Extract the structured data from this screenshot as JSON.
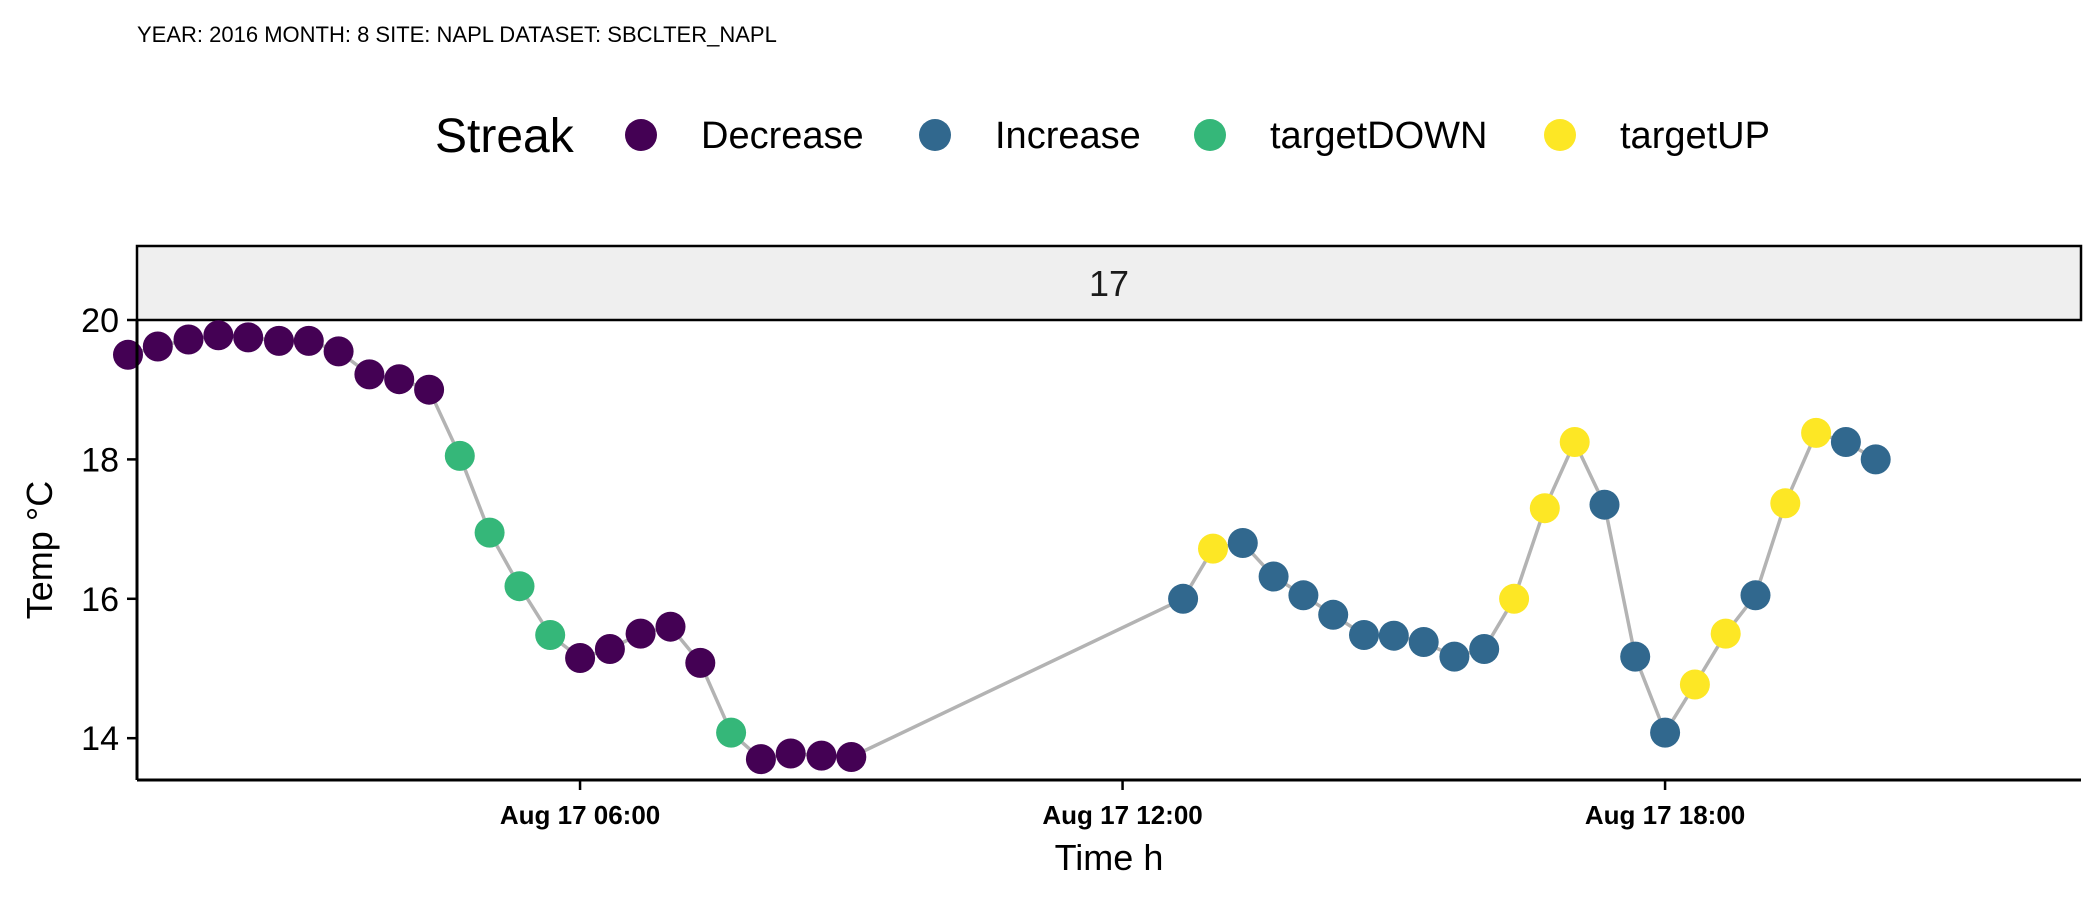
{
  "caption": "YEAR: 2016 MONTH: 8 SITE:  NAPL DATASET:  SBCLTER_NAPL",
  "chart_data": {
    "type": "scatter",
    "facet_label": "17",
    "xlabel": "Time h",
    "ylabel": "Temp °C",
    "ylim": [
      13.4,
      20.0
    ],
    "yticks": [
      14,
      16,
      18,
      20
    ],
    "xlim": [
      1.1,
      22.6
    ],
    "xticks": [
      {
        "value": 6,
        "label": "Aug 17 06:00"
      },
      {
        "value": 12,
        "label": "Aug 17 12:00"
      },
      {
        "value": 18,
        "label": "Aug 17 18:00"
      }
    ],
    "line_color": "#b3b3b3",
    "legend": {
      "title": "Streak",
      "position": "top",
      "entries": [
        {
          "name": "Decrease",
          "color": "#440154"
        },
        {
          "name": "Increase",
          "color": "#31688e"
        },
        {
          "name": "targetDOWN",
          "color": "#35b779"
        },
        {
          "name": "targetUP",
          "color": "#fde725"
        }
      ]
    },
    "points": [
      {
        "x": 1.0,
        "y": 19.5,
        "streak": "Decrease"
      },
      {
        "x": 1.33,
        "y": 19.62,
        "streak": "Decrease"
      },
      {
        "x": 1.67,
        "y": 19.72,
        "streak": "Decrease"
      },
      {
        "x": 2.0,
        "y": 19.78,
        "streak": "Decrease"
      },
      {
        "x": 2.33,
        "y": 19.75,
        "streak": "Decrease"
      },
      {
        "x": 2.67,
        "y": 19.7,
        "streak": "Decrease"
      },
      {
        "x": 3.0,
        "y": 19.7,
        "streak": "Decrease"
      },
      {
        "x": 3.33,
        "y": 19.55,
        "streak": "Decrease"
      },
      {
        "x": 3.67,
        "y": 19.22,
        "streak": "Decrease"
      },
      {
        "x": 4.0,
        "y": 19.15,
        "streak": "Decrease"
      },
      {
        "x": 4.33,
        "y": 19.0,
        "streak": "Decrease"
      },
      {
        "x": 4.67,
        "y": 18.05,
        "streak": "targetDOWN"
      },
      {
        "x": 5.0,
        "y": 16.95,
        "streak": "targetDOWN"
      },
      {
        "x": 5.33,
        "y": 16.18,
        "streak": "targetDOWN"
      },
      {
        "x": 5.67,
        "y": 15.48,
        "streak": "targetDOWN"
      },
      {
        "x": 6.0,
        "y": 15.15,
        "streak": "Decrease"
      },
      {
        "x": 6.33,
        "y": 15.28,
        "streak": "Decrease"
      },
      {
        "x": 6.67,
        "y": 15.5,
        "streak": "Decrease"
      },
      {
        "x": 7.0,
        "y": 15.6,
        "streak": "Decrease"
      },
      {
        "x": 7.33,
        "y": 15.08,
        "streak": "Decrease"
      },
      {
        "x": 7.67,
        "y": 14.08,
        "streak": "targetDOWN"
      },
      {
        "x": 8.0,
        "y": 13.7,
        "streak": "Decrease"
      },
      {
        "x": 8.33,
        "y": 13.78,
        "streak": "Decrease"
      },
      {
        "x": 8.67,
        "y": 13.75,
        "streak": "Decrease"
      },
      {
        "x": 9.0,
        "y": 13.73,
        "streak": "Decrease"
      },
      {
        "x": 12.67,
        "y": 16.0,
        "streak": "Increase"
      },
      {
        "x": 13.0,
        "y": 16.72,
        "streak": "targetUP"
      },
      {
        "x": 13.33,
        "y": 16.8,
        "streak": "Increase"
      },
      {
        "x": 13.67,
        "y": 16.32,
        "streak": "Increase"
      },
      {
        "x": 14.0,
        "y": 16.05,
        "streak": "Increase"
      },
      {
        "x": 14.33,
        "y": 15.77,
        "streak": "Increase"
      },
      {
        "x": 14.67,
        "y": 15.48,
        "streak": "Increase"
      },
      {
        "x": 15.0,
        "y": 15.47,
        "streak": "Increase"
      },
      {
        "x": 15.33,
        "y": 15.38,
        "streak": "Increase"
      },
      {
        "x": 15.67,
        "y": 15.17,
        "streak": "Increase"
      },
      {
        "x": 16.0,
        "y": 15.28,
        "streak": "Increase"
      },
      {
        "x": 16.33,
        "y": 16.0,
        "streak": "targetUP"
      },
      {
        "x": 16.67,
        "y": 17.3,
        "streak": "targetUP"
      },
      {
        "x": 17.0,
        "y": 18.25,
        "streak": "targetUP"
      },
      {
        "x": 17.33,
        "y": 17.35,
        "streak": "Increase"
      },
      {
        "x": 17.67,
        "y": 15.17,
        "streak": "Increase"
      },
      {
        "x": 18.0,
        "y": 14.08,
        "streak": "Increase"
      },
      {
        "x": 18.33,
        "y": 14.77,
        "streak": "targetUP"
      },
      {
        "x": 18.67,
        "y": 15.5,
        "streak": "targetUP"
      },
      {
        "x": 19.0,
        "y": 16.05,
        "streak": "Increase"
      },
      {
        "x": 19.33,
        "y": 17.37,
        "streak": "targetUP"
      },
      {
        "x": 19.67,
        "y": 18.38,
        "streak": "targetUP"
      },
      {
        "x": 20.0,
        "y": 18.25,
        "streak": "Increase"
      },
      {
        "x": 20.33,
        "y": 18.0,
        "streak": "Increase"
      }
    ]
  }
}
